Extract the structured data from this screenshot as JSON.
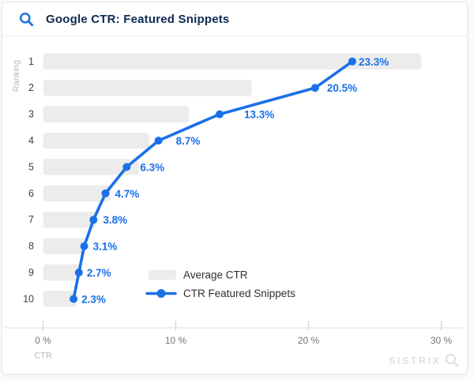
{
  "header": {
    "title": "Google CTR: Featured Snippets",
    "icon": "search-icon"
  },
  "colors": {
    "blue": "#1a70e8",
    "navy": "#0e2a52",
    "bar_gray": "#ececec",
    "axis_line": "#e5e5e5",
    "tick": "#d2d2d2",
    "tick_label": "#757575",
    "muted_label": "#b9b9b9",
    "rank_label": "#3d3d3d",
    "legend_text": "#303030",
    "watermark_gray": "#e1e1e1",
    "card_border": "#e7e7e7"
  },
  "chart_data": {
    "type": "bar+line",
    "orientation": "horizontal",
    "title": "Google CTR: Featured Snippets",
    "categories": [
      "1",
      "2",
      "3",
      "4",
      "5",
      "6",
      "7",
      "8",
      "9",
      "10"
    ],
    "series": [
      {
        "name": "Average CTR",
        "type": "bar",
        "values": [
          28.5,
          15.7,
          11.0,
          8.0,
          7.2,
          5.1,
          4.0,
          3.2,
          2.8,
          2.5
        ]
      },
      {
        "name": "CTR Featured Snippets",
        "type": "line",
        "values": [
          23.3,
          20.5,
          13.3,
          8.7,
          6.3,
          4.7,
          3.8,
          3.1,
          2.7,
          2.3
        ],
        "labels": [
          "23.3%",
          "20.5%",
          "13.3%",
          "8.7%",
          "6.3%",
          "4.7%",
          "3.8%",
          "3.1%",
          "2.7%",
          "2.3%"
        ]
      }
    ],
    "xlabel": "CTR",
    "ylabel": "Ranking",
    "x_ticks": [
      "0 %",
      "10 %",
      "20 %",
      "30 %"
    ],
    "x_tick_values": [
      0,
      10,
      20,
      30
    ],
    "xlim": [
      0,
      32
    ],
    "grid": false,
    "legend_position": "inside-bottom-center"
  },
  "watermark": "SISTRIX"
}
